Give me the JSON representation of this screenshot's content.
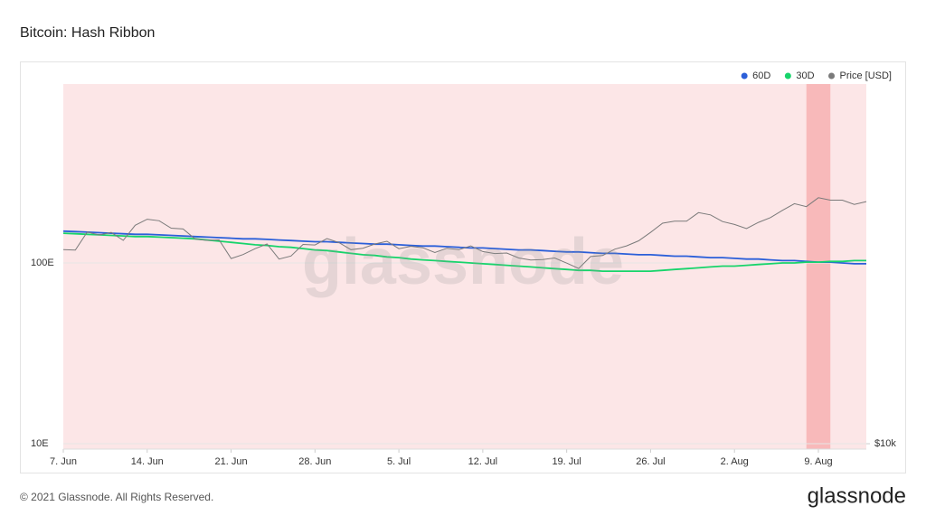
{
  "header": {
    "title": "Bitcoin: Hash Ribbon"
  },
  "footer": {
    "copyright": "© 2021 Glassnode. All Rights Reserved.",
    "logo": "glassnode"
  },
  "watermark": "glassnode",
  "chart_data": {
    "type": "line",
    "log": true,
    "grid": true,
    "legend": "top-right",
    "background_band": {
      "start": 0,
      "end": 67,
      "color": "#fce6e7"
    },
    "highlight": {
      "start": 62,
      "end": 64,
      "color": "#f8b9ba"
    },
    "categories": [
      "7. Jun",
      null,
      null,
      null,
      null,
      null,
      null,
      "14. Jun",
      null,
      null,
      null,
      null,
      null,
      null,
      "21. Jun",
      null,
      null,
      null,
      null,
      null,
      null,
      "28. Jun",
      null,
      null,
      null,
      null,
      null,
      null,
      "5. Jul",
      null,
      null,
      null,
      null,
      null,
      null,
      "12. Jul",
      null,
      null,
      null,
      null,
      null,
      null,
      "19. Jul",
      null,
      null,
      null,
      null,
      null,
      null,
      "26. Jul",
      null,
      null,
      null,
      null,
      null,
      null,
      "2. Aug",
      null,
      null,
      null,
      null,
      null,
      null,
      "9. Aug",
      null,
      null,
      null,
      null
    ],
    "ylim": [
      9.33,
      977
    ],
    "yticks": [
      {
        "value": 10,
        "label": "10E"
      },
      {
        "value": 100,
        "label": "100E"
      }
    ],
    "y2lim": [
      9670,
      94000
    ],
    "y2ticks": [
      {
        "value": 10000,
        "label": "$10k"
      }
    ],
    "series": [
      {
        "name": "60D",
        "color": "#2b5fd9",
        "values": [
          150,
          149,
          148,
          147,
          146,
          145,
          144,
          144,
          143,
          142,
          141,
          140,
          139,
          138,
          137,
          136,
          136,
          135,
          134,
          133,
          132,
          131,
          131,
          130,
          129,
          128,
          127,
          127,
          126,
          125,
          124,
          124,
          123,
          122,
          121,
          121,
          120,
          119,
          118,
          118,
          117,
          116,
          115,
          115,
          114,
          113,
          113,
          112,
          111,
          111,
          110,
          109,
          109,
          108,
          107,
          107,
          106,
          105,
          105,
          104,
          103,
          103,
          102,
          101,
          101,
          100,
          99,
          99
        ]
      },
      {
        "name": "30D",
        "color": "#17d46b",
        "values": [
          146,
          145,
          144,
          143,
          142,
          141,
          140,
          140,
          139,
          138,
          137,
          136,
          134,
          132,
          130,
          128,
          126,
          125,
          123,
          122,
          120,
          118,
          117,
          115,
          113,
          111,
          110,
          108,
          107,
          105,
          104,
          103,
          102,
          101,
          100,
          99,
          98,
          97,
          96,
          95,
          94,
          93,
          92,
          91,
          91,
          90,
          90,
          90,
          90,
          90,
          91,
          92,
          93,
          94,
          95,
          96,
          96,
          97,
          98,
          99,
          100,
          100,
          101,
          101,
          102,
          102,
          103,
          103
        ]
      },
      {
        "name": "Price [USD]",
        "color": "#7a7a7a",
        "axis": "y2",
        "values": [
          33500,
          33400,
          37400,
          36700,
          37300,
          35500,
          39000,
          40500,
          40100,
          38300,
          38100,
          35800,
          35500,
          35600,
          31700,
          32500,
          33700,
          34700,
          31600,
          32200,
          34600,
          34500,
          35900,
          35000,
          33500,
          33800,
          34700,
          35300,
          33700,
          34200,
          33900,
          32900,
          33800,
          33500,
          34300,
          33100,
          32700,
          32800,
          31800,
          31400,
          31500,
          31800,
          30800,
          29800,
          32100,
          32300,
          33600,
          34300,
          35400,
          37300,
          39500,
          40000,
          40000,
          42200,
          41600,
          39900,
          39200,
          38200,
          39700,
          40900,
          42800,
          44600,
          43800,
          46300,
          45600,
          45600,
          44400,
          45200
        ]
      }
    ]
  }
}
